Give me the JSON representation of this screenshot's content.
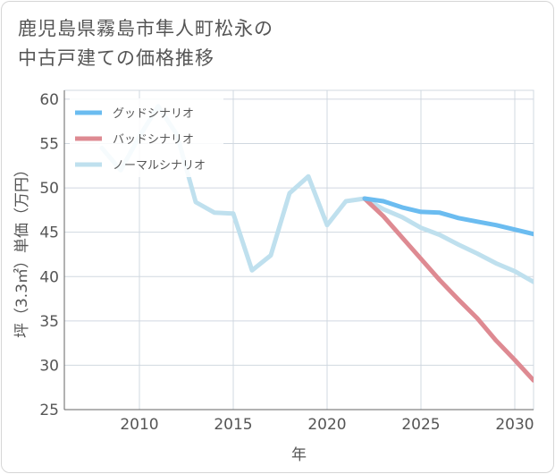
{
  "title": {
    "line1": "鹿児島県霧島市隼人町松永の",
    "line2": "中古戸建ての価格推移"
  },
  "colors": {
    "good": "#6bbcf0",
    "bad": "#de8a92",
    "normal": "#bfe0ee",
    "grid": "#d0d8e0",
    "axis": "#666666"
  },
  "chart_data": {
    "type": "line",
    "title": "鹿児島県霧島市隼人町松永の中古戸建ての価格推移",
    "xlabel": "年",
    "ylabel": "坪（3.3㎡）単価（万円）",
    "xlim": [
      2006,
      2031
    ],
    "ylim": [
      25,
      61
    ],
    "xticks": [
      2010,
      2015,
      2020,
      2025,
      2030
    ],
    "yticks": [
      25,
      30,
      35,
      40,
      45,
      50,
      55,
      60
    ],
    "legend_position": "top-left",
    "series": [
      {
        "name": "グッドシナリオ",
        "key": "good",
        "x": [
          2022,
          2023,
          2024,
          2025,
          2026,
          2027,
          2028,
          2029,
          2030,
          2031
        ],
        "y": [
          48.8,
          48.5,
          47.8,
          47.3,
          47.2,
          46.6,
          46.2,
          45.8,
          45.3,
          44.8
        ]
      },
      {
        "name": "バッドシナリオ",
        "key": "bad",
        "x": [
          2022,
          2023,
          2024,
          2025,
          2026,
          2027,
          2028,
          2029,
          2030,
          2031
        ],
        "y": [
          48.8,
          46.8,
          44.4,
          42.0,
          39.6,
          37.4,
          35.3,
          32.8,
          30.6,
          28.3
        ]
      },
      {
        "name": "ノーマルシナリオ",
        "key": "normal",
        "x": [
          2008,
          2009,
          2010,
          2011,
          2012,
          2013,
          2014,
          2015,
          2016,
          2017,
          2018,
          2019,
          2020,
          2021,
          2022,
          2023,
          2024,
          2025,
          2026,
          2027,
          2028,
          2029,
          2030,
          2031
        ],
        "y": [
          54.5,
          52.0,
          55.8,
          59.2,
          56.0,
          48.4,
          47.2,
          47.1,
          40.7,
          42.4,
          49.4,
          51.3,
          45.8,
          48.5,
          48.8,
          47.6,
          46.7,
          45.5,
          44.7,
          43.6,
          42.6,
          41.5,
          40.6,
          39.4
        ]
      }
    ]
  }
}
